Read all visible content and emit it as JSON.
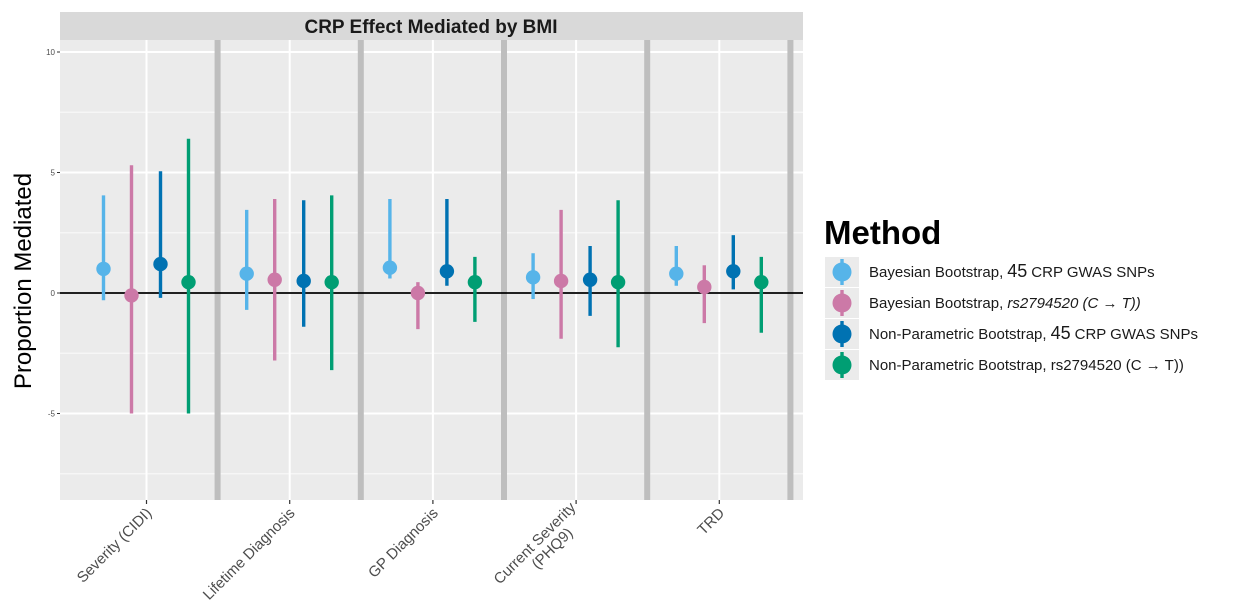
{
  "chart_data": {
    "type": "scatter",
    "title": "CRP Effect Mediated by BMI",
    "xlabel": "",
    "ylabel": "Proportion Mediated",
    "categories": [
      "Severity (CIDI)",
      "Lifetime Diagnosis",
      "GP Diagnosis",
      "Current Severity\n(PHQ9)",
      "TRD"
    ],
    "ylim": [
      -8.5,
      10.5
    ],
    "yticks": [
      -5,
      0,
      5,
      10
    ],
    "ytick_labels": [
      "-5",
      "0",
      "5",
      "10"
    ],
    "reference_line": 0,
    "grid": true,
    "legend": {
      "title": "Method",
      "position": "right",
      "entries": [
        {
          "name_parts": [
            "Bayesian Bootstrap,",
            "45",
            "CRP GWAS SNPs"
          ],
          "italic": false,
          "color": "#56B4E9"
        },
        {
          "name_parts": [
            "Bayesian Bootstrap, ",
            "rs2794520 (C → T))",
            ""
          ],
          "italic": true,
          "color": "#CC79A7"
        },
        {
          "name_parts": [
            "Non-Parametric Bootstrap,",
            "45",
            "CRP GWAS SNPs"
          ],
          "italic": false,
          "color": "#0072B2"
        },
        {
          "name_parts": [
            "Non-Parametric Bootstrap, rs2794520 (C → T))",
            "",
            ""
          ],
          "italic": false,
          "color": "#009E73"
        }
      ]
    },
    "series": [
      {
        "color": "#56B4E9",
        "estimates": [
          1.0,
          0.8,
          1.05,
          0.65,
          0.8
        ],
        "lower": [
          -0.3,
          -0.7,
          0.6,
          -0.25,
          0.3
        ],
        "upper": [
          4.05,
          3.45,
          3.9,
          1.65,
          1.95
        ]
      },
      {
        "color": "#CC79A7",
        "estimates": [
          -0.1,
          0.55,
          0.0,
          0.5,
          0.25
        ],
        "lower": [
          -5.0,
          -2.8,
          -1.5,
          -1.9,
          -1.25
        ],
        "upper": [
          5.3,
          3.9,
          0.45,
          3.45,
          1.15
        ]
      },
      {
        "color": "#0072B2",
        "estimates": [
          1.2,
          0.5,
          0.9,
          0.55,
          0.9
        ],
        "lower": [
          -0.2,
          -1.4,
          0.3,
          -0.95,
          0.15
        ],
        "upper": [
          5.05,
          3.85,
          3.9,
          1.95,
          2.4
        ]
      },
      {
        "color": "#009E73",
        "estimates": [
          0.45,
          0.45,
          0.45,
          0.45,
          0.45
        ],
        "lower": [
          -5.0,
          -3.2,
          -1.2,
          -2.25,
          -1.65
        ],
        "upper": [
          6.4,
          4.05,
          1.5,
          3.85,
          1.5
        ]
      }
    ]
  }
}
